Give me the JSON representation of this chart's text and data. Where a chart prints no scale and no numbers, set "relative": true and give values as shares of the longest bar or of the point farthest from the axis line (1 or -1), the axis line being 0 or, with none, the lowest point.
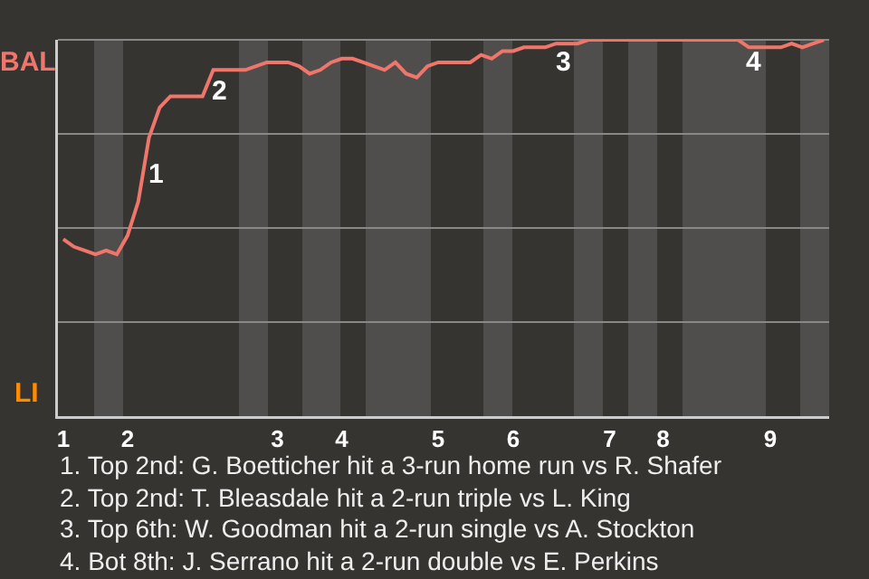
{
  "chart_data": {
    "type": "line",
    "relative": true,
    "categories": [
      "1",
      null,
      null,
      null,
      null,
      null,
      "2",
      null,
      null,
      null,
      null,
      null,
      null,
      null,
      null,
      null,
      null,
      null,
      null,
      null,
      "3",
      null,
      null,
      null,
      null,
      null,
      "4",
      null,
      null,
      null,
      null,
      null,
      null,
      null,
      null,
      "5",
      null,
      null,
      null,
      null,
      null,
      null,
      "6",
      null,
      null,
      null,
      null,
      null,
      null,
      null,
      null,
      "7",
      null,
      null,
      null,
      null,
      "8",
      null,
      null,
      null,
      null,
      null,
      null,
      null,
      null,
      null,
      "9",
      null,
      null,
      null,
      null,
      null
    ],
    "grid": "y",
    "marker": "none",
    "line_style": "solid",
    "series": [
      {
        "color": "#f0766b",
        "values": [
          0.47,
          0.45,
          0.44,
          0.43,
          0.44,
          0.43,
          0.48,
          0.57,
          0.74,
          0.82,
          0.85,
          0.85,
          0.85,
          0.85,
          0.92,
          0.92,
          0.92,
          0.92,
          0.93,
          0.94,
          0.94,
          0.94,
          0.93,
          0.91,
          0.92,
          0.94,
          0.95,
          0.95,
          0.94,
          0.93,
          0.92,
          0.94,
          0.91,
          0.9,
          0.93,
          0.94,
          0.94,
          0.94,
          0.94,
          0.96,
          0.95,
          0.97,
          0.97,
          0.98,
          0.98,
          0.98,
          0.99,
          0.99,
          0.99,
          1,
          1,
          1,
          1,
          1,
          1,
          1,
          1,
          1,
          1,
          1,
          1,
          1,
          1,
          1,
          0.98,
          0.98,
          0.98,
          0.98,
          0.99,
          0.98,
          0.99,
          1
        ]
      }
    ],
    "annotations": [
      "BAL",
      "LI",
      "1",
      "2",
      "3",
      "4",
      "1. Top 2nd: G. Boetticher hit a 3-run home run vs R. Shafer",
      "2. Top 2nd: T. Bleasdale hit a 2-run triple vs L. King",
      "3. Top 6th: W. Goodman hit a 2-run single vs A. Stockton",
      "4. Bot 8th: J. Serrano hit a 2-run double vs E. Perkins"
    ]
  }
}
